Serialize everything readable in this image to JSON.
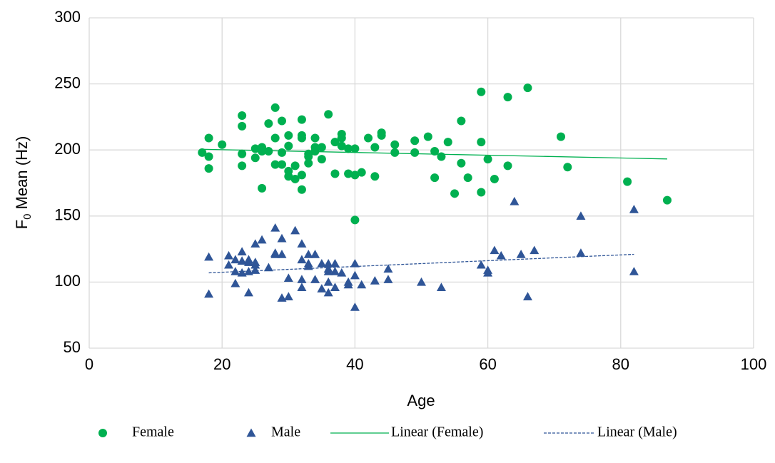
{
  "chart_data": {
    "type": "scatter",
    "xlabel": "Age",
    "ylabel": [
      "F",
      "0",
      " Mean (Hz)"
    ],
    "xlim": [
      0,
      100
    ],
    "xticks": [
      0,
      20,
      40,
      60,
      80,
      100
    ],
    "ylim": [
      50,
      300
    ],
    "yticks": [
      50,
      100,
      150,
      200,
      250,
      300
    ],
    "grid": true,
    "legend": "bottom",
    "series": [
      {
        "name": "Female",
        "color": "#00b050",
        "marker": "circle",
        "x": [
          17,
          18,
          18,
          18,
          20,
          23,
          23,
          23,
          23,
          25,
          25,
          26,
          26,
          26,
          27,
          27,
          28,
          28,
          28,
          29,
          29,
          29,
          30,
          30,
          30,
          30,
          31,
          31,
          32,
          32,
          32,
          32,
          32,
          33,
          33,
          33,
          34,
          34,
          34,
          35,
          35,
          36,
          37,
          37,
          38,
          38,
          38,
          39,
          39,
          40,
          40,
          40,
          41,
          42,
          43,
          43,
          44,
          44,
          46,
          46,
          49,
          49,
          51,
          52,
          52,
          53,
          54,
          55,
          56,
          56,
          57,
          59,
          59,
          59,
          60,
          61,
          63,
          63,
          66,
          71,
          72,
          81,
          87
        ],
        "values": [
          198,
          209,
          186,
          195,
          204,
          226,
          218,
          197,
          188,
          201,
          194,
          202,
          171,
          199,
          220,
          199,
          232,
          209,
          189,
          222,
          198,
          189,
          211,
          203,
          184,
          180,
          188,
          178,
          223,
          211,
          181,
          170,
          209,
          195,
          190,
          197,
          209,
          199,
          202,
          202,
          193,
          227,
          206,
          182,
          212,
          209,
          203,
          201,
          182,
          201,
          181,
          147,
          183,
          209,
          202,
          180,
          213,
          211,
          204,
          198,
          207,
          198,
          210,
          199,
          179,
          195,
          206,
          167,
          222,
          190,
          179,
          244,
          206,
          168,
          193,
          178,
          240,
          188,
          247,
          210,
          187,
          176,
          162
        ]
      },
      {
        "name": "Male",
        "color": "#2f5597",
        "marker": "triangle",
        "x": [
          18,
          18,
          21,
          21,
          22,
          22,
          22,
          23,
          23,
          23,
          24,
          24,
          24,
          24,
          25,
          25,
          25,
          25,
          26,
          27,
          28,
          28,
          28,
          29,
          29,
          29,
          30,
          30,
          31,
          32,
          32,
          32,
          32,
          33,
          33,
          33,
          34,
          34,
          35,
          35,
          36,
          36,
          36,
          36,
          36,
          37,
          37,
          37,
          38,
          39,
          39,
          40,
          40,
          40,
          41,
          43,
          45,
          45,
          50,
          53,
          59,
          60,
          60,
          61,
          62,
          65,
          66,
          67,
          64,
          74,
          74,
          82,
          82
        ],
        "values": [
          119,
          91,
          120,
          113,
          108,
          99,
          117,
          123,
          116,
          107,
          117,
          108,
          92,
          115,
          129,
          109,
          113,
          115,
          132,
          111,
          141,
          122,
          121,
          133,
          121,
          88,
          103,
          89,
          139,
          129,
          117,
          102,
          96,
          121,
          112,
          114,
          121,
          102,
          114,
          95,
          114,
          108,
          100,
          92,
          110,
          114,
          108,
          96,
          107,
          100,
          98,
          114,
          105,
          81,
          98,
          101,
          110,
          102,
          100,
          96,
          113,
          109,
          107,
          124,
          120,
          121,
          89,
          124,
          161,
          122,
          150,
          155,
          108
        ]
      },
      {
        "name": "Linear (Female)",
        "color": "#00b050",
        "line_style": "solid",
        "x": [
          17,
          87
        ],
        "values": [
          200.5,
          193.2
        ]
      },
      {
        "name": "Linear (Male)",
        "color": "#2f5597",
        "line_style": "dashed",
        "x": [
          18,
          82
        ],
        "values": [
          107,
          121
        ]
      }
    ]
  }
}
